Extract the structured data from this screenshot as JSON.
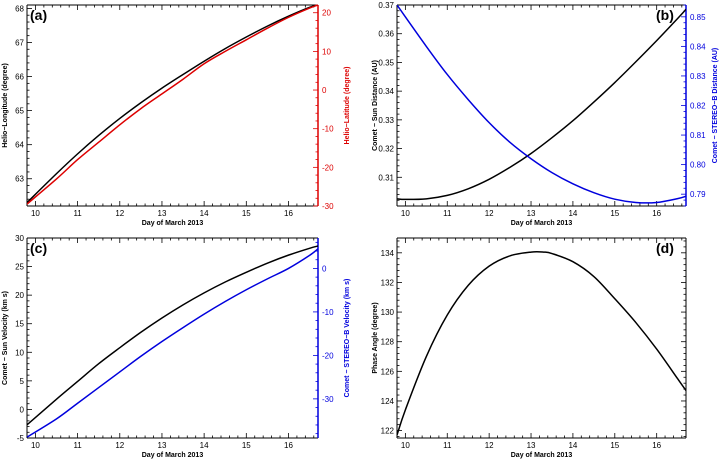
{
  "colors": {
    "black": "#000000",
    "red": "#dd0000",
    "blue": "#0000dd"
  },
  "chart_data": [
    {
      "panel": "(a)",
      "type": "line",
      "xlabel": "Day of March 2013",
      "xlim": [
        9.8,
        16.7
      ],
      "xticks": [
        10,
        11,
        12,
        13,
        14,
        15,
        16
      ],
      "left_axis": {
        "label": "Helio−Longitude (degree)",
        "lim": [
          62.2,
          68.1
        ],
        "ticks": [
          63,
          64,
          65,
          66,
          67,
          68
        ],
        "color": "black"
      },
      "right_axis": {
        "label": "Helio−Latitude (degree)",
        "lim": [
          -30,
          22
        ],
        "ticks": [
          -30,
          -20,
          -10,
          0,
          10,
          20
        ],
        "color": "red"
      },
      "series": [
        {
          "name": "Helio-Longitude",
          "axis": "left",
          "color": "black",
          "x": [
            9.8,
            10.5,
            11.0,
            11.5,
            12.0,
            12.5,
            13.0,
            13.5,
            14.0,
            14.5,
            15.0,
            15.5,
            16.0,
            16.5,
            16.7
          ],
          "y": [
            62.3,
            63.15,
            63.73,
            64.27,
            64.77,
            65.23,
            65.66,
            66.06,
            66.45,
            66.82,
            67.16,
            67.48,
            67.77,
            68.03,
            68.1
          ]
        },
        {
          "name": "Helio-Latitude",
          "axis": "right",
          "color": "red",
          "x": [
            9.8,
            10.5,
            11.0,
            11.5,
            12.0,
            12.5,
            13.0,
            13.5,
            14.0,
            14.5,
            15.0,
            15.5,
            16.0,
            16.5,
            16.7
          ],
          "y": [
            -29.5,
            -23.0,
            -18.0,
            -13.5,
            -9.0,
            -4.8,
            -1.0,
            2.8,
            6.8,
            10.0,
            13.0,
            16.0,
            18.8,
            21.2,
            22.0
          ]
        }
      ]
    },
    {
      "panel": "(b)",
      "type": "line",
      "xlabel": "Day of March 2013",
      "xlim": [
        9.8,
        16.7
      ],
      "xticks": [
        10,
        11,
        12,
        13,
        14,
        15,
        16
      ],
      "left_axis": {
        "label": "Comet − Sun Distance (AU)",
        "lim": [
          0.3,
          0.37
        ],
        "ticks": [
          0.31,
          0.32,
          0.33,
          0.34,
          0.35,
          0.36,
          0.37
        ],
        "tick_labels": [
          "0.31",
          "0.32",
          "0.33",
          "0.34",
          "0.35",
          "0.36",
          "0.37"
        ],
        "color": "black"
      },
      "right_axis": {
        "label": "Comet − STEREO−B Distance (AU)",
        "lim": [
          0.786,
          0.854
        ],
        "ticks": [
          0.79,
          0.8,
          0.81,
          0.82,
          0.83,
          0.84,
          0.85
        ],
        "tick_labels": [
          "0.79",
          "0.80",
          "0.81",
          "0.82",
          "0.83",
          "0.84",
          "0.85"
        ],
        "color": "blue"
      },
      "series": [
        {
          "name": "Comet - Sun Distance",
          "axis": "left",
          "color": "black",
          "x": [
            9.8,
            10.0,
            10.5,
            11.0,
            11.5,
            12.0,
            12.5,
            13.0,
            13.5,
            14.0,
            14.5,
            15.0,
            15.5,
            16.0,
            16.5,
            16.7
          ],
          "y": [
            0.3025,
            0.3023,
            0.3025,
            0.3037,
            0.306,
            0.3093,
            0.3135,
            0.3183,
            0.3238,
            0.3297,
            0.3362,
            0.343,
            0.3502,
            0.3576,
            0.3653,
            0.3685
          ]
        },
        {
          "name": "Comet - STEREO-B Distance",
          "axis": "right",
          "color": "blue",
          "x": [
            9.8,
            10.5,
            11.0,
            11.5,
            12.0,
            12.5,
            13.0,
            13.5,
            14.0,
            14.5,
            15.0,
            15.5,
            16.0,
            16.5,
            16.7
          ],
          "y": [
            0.854,
            0.84,
            0.8305,
            0.822,
            0.8142,
            0.8075,
            0.802,
            0.7973,
            0.7935,
            0.7905,
            0.7883,
            0.7872,
            0.7872,
            0.7885,
            0.7893
          ]
        }
      ]
    },
    {
      "panel": "(c)",
      "type": "line",
      "xlabel": "Day of March 2013",
      "xlim": [
        9.8,
        16.7
      ],
      "xticks": [
        10,
        11,
        12,
        13,
        14,
        15,
        16
      ],
      "left_axis": {
        "label": "Comet − Sun Velocity (km s)",
        "lim": [
          -5,
          30
        ],
        "ticks": [
          -5,
          0,
          5,
          10,
          15,
          20,
          25,
          30
        ],
        "color": "black"
      },
      "right_axis": {
        "label": "Comet − STEREO−B Velocity (km s)",
        "lim": [
          -39,
          7
        ],
        "ticks": [
          -30,
          -20,
          -10,
          0
        ],
        "color": "blue"
      },
      "series": [
        {
          "name": "Comet - Sun Velocity",
          "axis": "left",
          "color": "black",
          "x": [
            9.8,
            10.5,
            11.0,
            11.5,
            12.0,
            12.5,
            13.0,
            13.5,
            14.0,
            14.5,
            15.0,
            15.5,
            16.0,
            16.5,
            16.7
          ],
          "y": [
            -2.7,
            1.8,
            4.9,
            8.0,
            10.8,
            13.5,
            16.0,
            18.3,
            20.4,
            22.3,
            24.0,
            25.6,
            27.0,
            28.2,
            28.6
          ]
        },
        {
          "name": "Comet - STEREO-B Velocity",
          "axis": "right",
          "color": "blue",
          "x": [
            9.8,
            10.5,
            11.0,
            11.5,
            12.0,
            12.5,
            13.0,
            13.5,
            14.0,
            14.5,
            15.0,
            15.5,
            16.0,
            16.5,
            16.7
          ],
          "y": [
            -38.8,
            -34.6,
            -31.0,
            -27.4,
            -23.8,
            -20.2,
            -16.8,
            -13.6,
            -10.5,
            -7.6,
            -4.9,
            -2.4,
            0.0,
            3.0,
            4.5
          ]
        }
      ]
    },
    {
      "panel": "(d)",
      "type": "line",
      "xlabel": "Day of March 2013",
      "xlim": [
        9.8,
        16.7
      ],
      "xticks": [
        10,
        11,
        12,
        13,
        14,
        15,
        16
      ],
      "left_axis": {
        "label": "Phase Angle (degree)",
        "lim": [
          121.5,
          135
        ],
        "ticks": [
          122,
          124,
          126,
          128,
          130,
          132,
          134
        ],
        "color": "black"
      },
      "series": [
        {
          "name": "Phase Angle",
          "axis": "left",
          "color": "black",
          "x": [
            9.8,
            10.0,
            10.5,
            11.0,
            11.5,
            12.0,
            12.5,
            13.0,
            13.3,
            13.5,
            14.0,
            14.5,
            15.0,
            15.5,
            16.0,
            16.5,
            16.7
          ],
          "y": [
            121.7,
            123.4,
            127.0,
            129.8,
            131.8,
            133.1,
            133.8,
            134.05,
            134.05,
            133.95,
            133.4,
            132.4,
            130.9,
            129.3,
            127.5,
            125.5,
            124.7
          ]
        }
      ]
    }
  ]
}
